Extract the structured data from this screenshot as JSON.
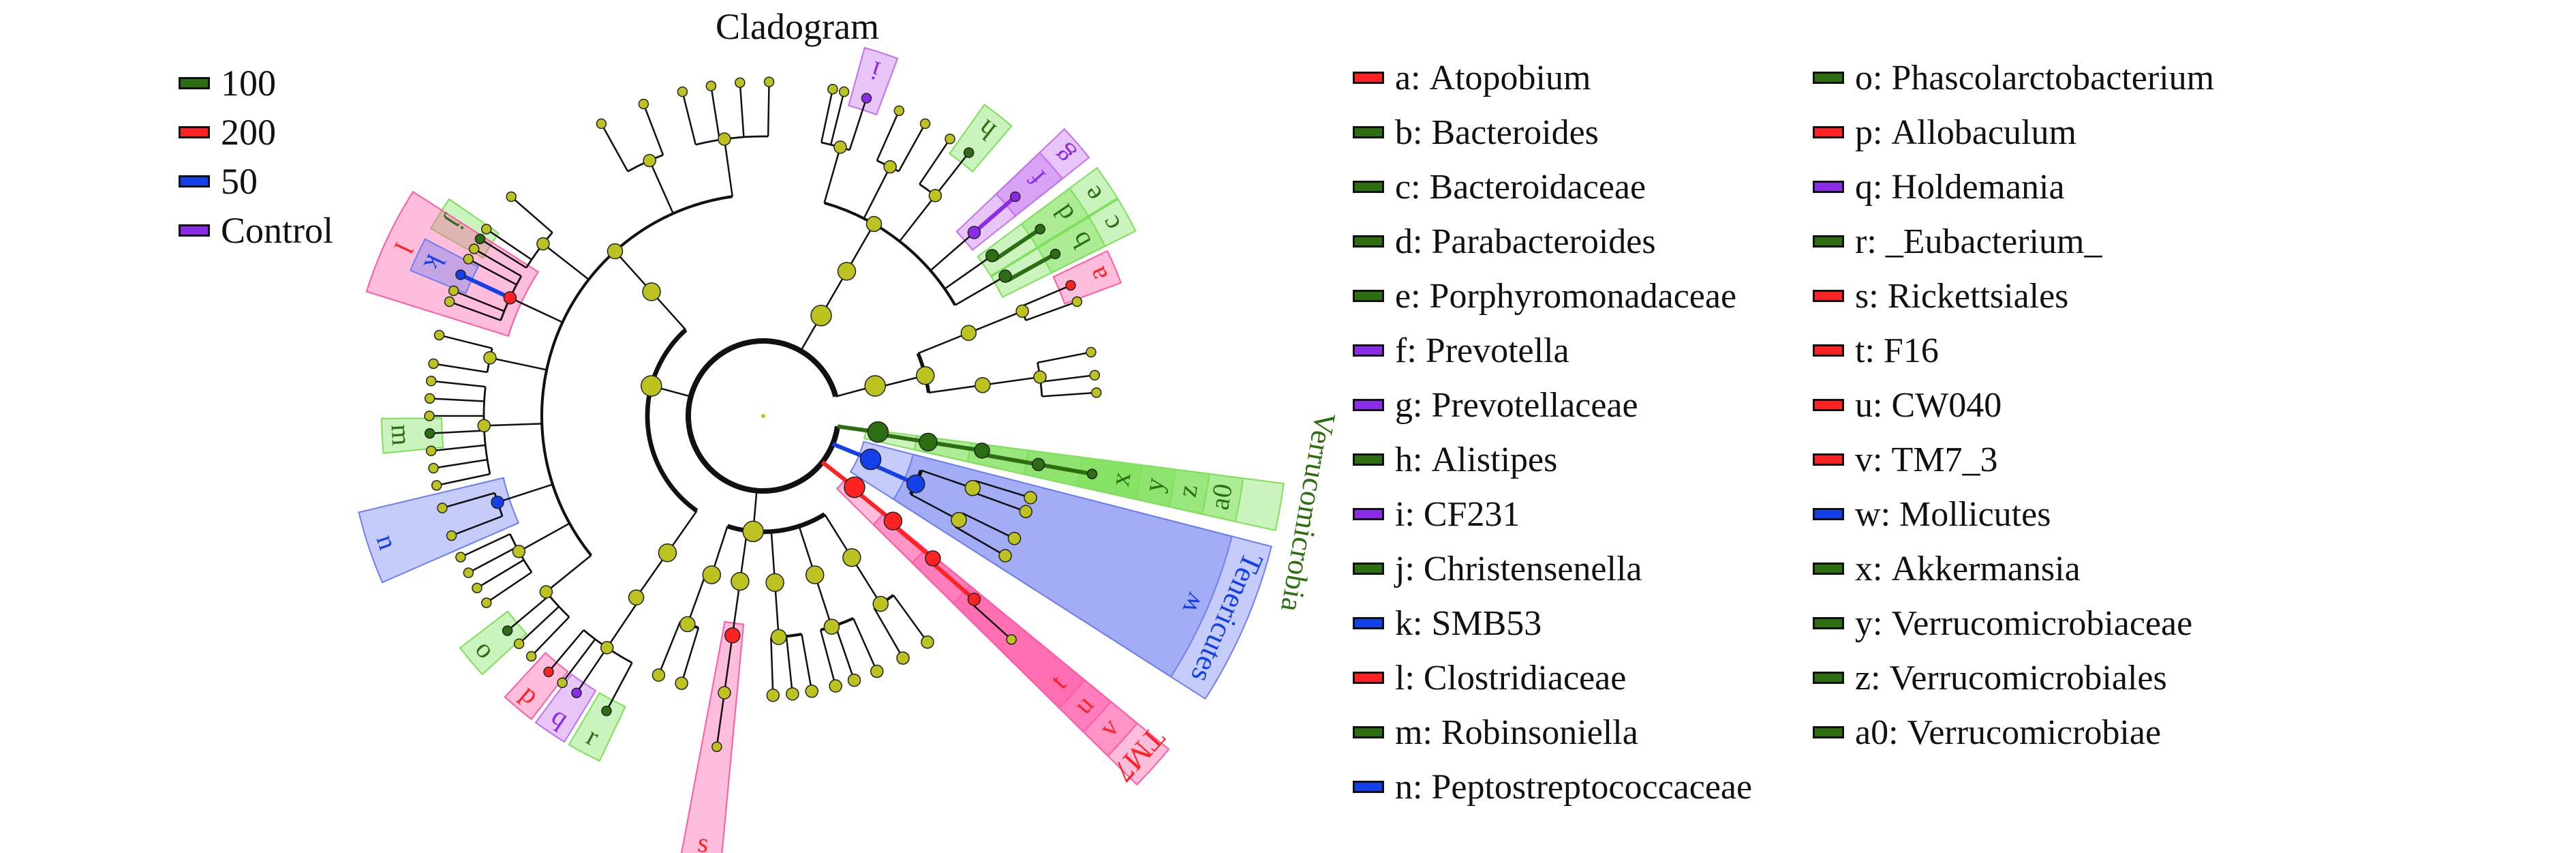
{
  "title": "Cladogram",
  "groups": [
    {
      "name": "100",
      "color": "#2e6e12",
      "shade": "#7ee05a"
    },
    {
      "name": "200",
      "color": "#ff2222",
      "shade": "#ff5aa8"
    },
    {
      "name": "50",
      "color": "#1340e8",
      "shade": "#6f7ff0"
    },
    {
      "name": "Control",
      "color": "#8a2be8",
      "shade": "#c26ff0"
    }
  ],
  "clades": [
    {
      "key": "a",
      "name": "Atopobium",
      "group": "200"
    },
    {
      "key": "b",
      "name": "Bacteroides",
      "group": "100"
    },
    {
      "key": "c",
      "name": "Bacteroidaceae",
      "group": "100"
    },
    {
      "key": "d",
      "name": "Parabacteroides",
      "group": "100"
    },
    {
      "key": "e",
      "name": "Porphyromonadaceae",
      "group": "100"
    },
    {
      "key": "f",
      "name": "Prevotella",
      "group": "Control"
    },
    {
      "key": "g",
      "name": "Prevotellaceae",
      "group": "Control"
    },
    {
      "key": "h",
      "name": "Alistipes",
      "group": "100"
    },
    {
      "key": "i",
      "name": "CF231",
      "group": "Control"
    },
    {
      "key": "j",
      "name": "Christensenella",
      "group": "100"
    },
    {
      "key": "k",
      "name": "SMB53",
      "group": "50"
    },
    {
      "key": "l",
      "name": "Clostridiaceae",
      "group": "200"
    },
    {
      "key": "m",
      "name": "Robinsoniella",
      "group": "100"
    },
    {
      "key": "n",
      "name": "Peptostreptococcaceae",
      "group": "50"
    },
    {
      "key": "o",
      "name": "Phascolarctobacterium",
      "group": "100"
    },
    {
      "key": "p",
      "name": "Allobaculum",
      "group": "200"
    },
    {
      "key": "q",
      "name": "Holdemania",
      "group": "Control"
    },
    {
      "key": "r",
      "name": "_Eubacterium_",
      "group": "100"
    },
    {
      "key": "s",
      "name": "Rickettsiales",
      "group": "200"
    },
    {
      "key": "t",
      "name": "F16",
      "group": "200"
    },
    {
      "key": "u",
      "name": "CW040",
      "group": "200"
    },
    {
      "key": "v",
      "name": "TM7_3",
      "group": "200"
    },
    {
      "key": "w",
      "name": "Mollicutes",
      "group": "50"
    },
    {
      "key": "x",
      "name": "Akkermansia",
      "group": "100"
    },
    {
      "key": "y",
      "name": "Verrucomicrobiaceae",
      "group": "100"
    },
    {
      "key": "z",
      "name": "Verrucomicrobiales",
      "group": "100"
    },
    {
      "key": "a0",
      "name": "Verrucomicrobiae",
      "group": "100"
    }
  ],
  "phylum_labels": {
    "verrucomicrobia": "Verrucomicrobia",
    "tenericutes": "Tenericutes",
    "tm7": "TM7"
  },
  "node_color": "#bcc21f"
}
